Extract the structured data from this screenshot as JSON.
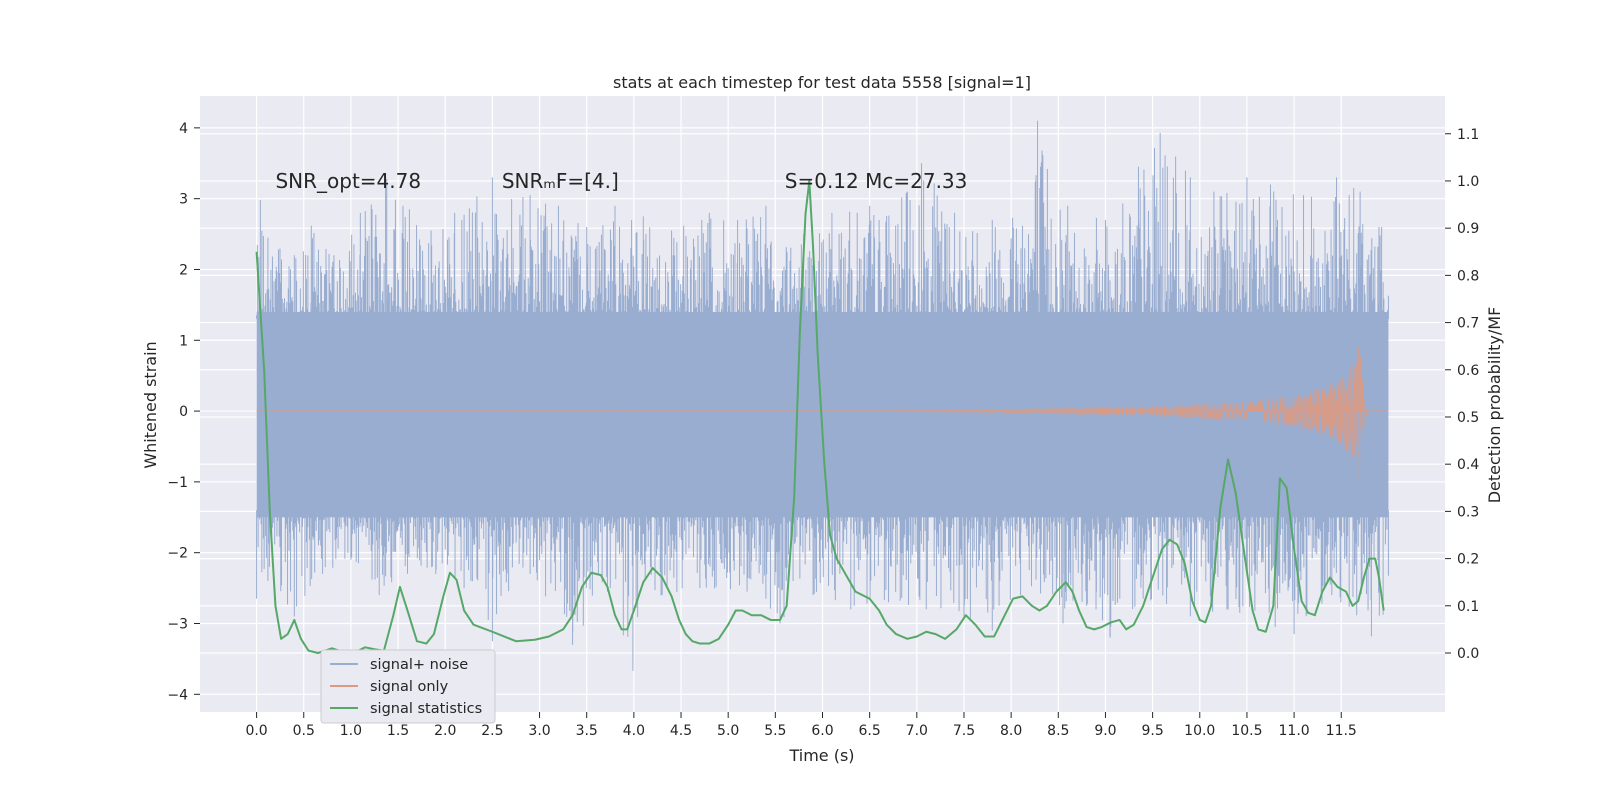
{
  "chart_data": {
    "type": "line",
    "title": "stats at each timestep for test data 5558 [signal=1]",
    "xlabel": "Time (s)",
    "ylabel_left": "Whitened strain",
    "ylabel_right": "Detection probability/MF",
    "xlim": [
      -0.6,
      12.6
    ],
    "ylim_left": [
      -4.25,
      4.45
    ],
    "ylim_right": [
      -0.125,
      1.18
    ],
    "x_ticks": [
      0.0,
      0.5,
      1.0,
      1.5,
      2.0,
      2.5,
      3.0,
      3.5,
      4.0,
      4.5,
      5.0,
      5.5,
      6.0,
      6.5,
      7.0,
      7.5,
      8.0,
      8.5,
      9.0,
      9.5,
      10.0,
      10.5,
      11.0,
      11.5
    ],
    "x_tick_labels": [
      "0.0",
      "0.5",
      "1.0",
      "1.5",
      "2.0",
      "2.5",
      "3.0",
      "3.5",
      "4.0",
      "4.5",
      "5.0",
      "5.5",
      "6.0",
      "6.5",
      "7.0",
      "7.5",
      "8.0",
      "8.5",
      "9.0",
      "9.5",
      "10.0",
      "10.5",
      "11.0",
      "11.5"
    ],
    "y_left_ticks": [
      -4,
      -3,
      -2,
      -1,
      0,
      1,
      2,
      3,
      4
    ],
    "y_left_tick_labels": [
      "−4",
      "−3",
      "−2",
      "−1",
      "0",
      "1",
      "2",
      "3",
      "4"
    ],
    "y_right_ticks": [
      0.0,
      0.1,
      0.2,
      0.3,
      0.4,
      0.5,
      0.6,
      0.7,
      0.8,
      0.9,
      1.0,
      1.1
    ],
    "y_right_tick_labels": [
      "0.0",
      "0.1",
      "0.2",
      "0.3",
      "0.4",
      "0.5",
      "0.6",
      "0.7",
      "0.8",
      "0.9",
      "1.0",
      "1.1"
    ],
    "grid": true,
    "legend_position": "lower-left",
    "annotations": [
      {
        "text": "SNR_opt=4.78",
        "x": 0.2,
        "y": 3.25
      },
      {
        "text": "SNRₘF=[4.]",
        "x": 2.6,
        "y": 3.25
      },
      {
        "text": "S=0.12   Mᴄ=27.33",
        "x": 5.6,
        "y": 3.25
      }
    ],
    "series": [
      {
        "name": "signal+ noise",
        "axis": "left",
        "color": "#99add0",
        "x_range": [
          0.0,
          12.0
        ],
        "band": [
          -1.5,
          1.4
        ],
        "peak_samples": [
          [
            0.04,
            2.98
          ],
          [
            0.12,
            2.45
          ],
          [
            0.4,
            2.2
          ],
          [
            0.58,
            2.62
          ],
          [
            0.82,
            2.2
          ],
          [
            1.1,
            2.8
          ],
          [
            1.38,
            3.28
          ],
          [
            1.62,
            2.85
          ],
          [
            1.85,
            2.55
          ],
          [
            2.1,
            2.8
          ],
          [
            2.5,
            3.3
          ],
          [
            2.9,
            3.05
          ],
          [
            3.2,
            2.9
          ],
          [
            3.5,
            2.6
          ],
          [
            3.8,
            2.9
          ],
          [
            4.1,
            2.75
          ],
          [
            4.4,
            2.55
          ],
          [
            4.8,
            2.8
          ],
          [
            5.1,
            2.7
          ],
          [
            5.4,
            2.9
          ],
          [
            5.8,
            2.5
          ],
          [
            6.1,
            2.8
          ],
          [
            6.5,
            2.9
          ],
          [
            6.9,
            3.1
          ],
          [
            7.05,
            3.5
          ],
          [
            7.4,
            2.8
          ],
          [
            7.8,
            2.7
          ],
          [
            8.28,
            4.1
          ],
          [
            8.6,
            2.9
          ],
          [
            9.0,
            2.7
          ],
          [
            9.35,
            3.45
          ],
          [
            9.58,
            3.93
          ],
          [
            9.9,
            3.3
          ],
          [
            10.15,
            3.1
          ],
          [
            10.5,
            3.3
          ],
          [
            10.75,
            3.2
          ],
          [
            11.1,
            3.05
          ],
          [
            11.45,
            3.3
          ],
          [
            11.7,
            3.1
          ],
          [
            11.9,
            2.6
          ]
        ],
        "trough_samples": [
          [
            0.0,
            -2.65
          ],
          [
            0.12,
            -2.4
          ],
          [
            0.4,
            -2.9
          ],
          [
            0.7,
            -2.3
          ],
          [
            1.0,
            -2.1
          ],
          [
            1.3,
            -2.6
          ],
          [
            1.6,
            -2.3
          ],
          [
            1.9,
            -2.3
          ],
          [
            2.2,
            -2.5
          ],
          [
            2.5,
            -3.25
          ],
          [
            2.9,
            -2.3
          ],
          [
            3.35,
            -3.3
          ],
          [
            3.75,
            -2.5
          ],
          [
            3.99,
            -3.67
          ],
          [
            4.3,
            -2.6
          ],
          [
            4.7,
            -2.5
          ],
          [
            5.2,
            -2.55
          ],
          [
            5.55,
            -3.0
          ],
          [
            5.9,
            -2.6
          ],
          [
            6.3,
            -2.8
          ],
          [
            6.7,
            -2.7
          ],
          [
            7.1,
            -2.8
          ],
          [
            7.5,
            -2.9
          ],
          [
            7.8,
            -3.1
          ],
          [
            8.1,
            -2.6
          ],
          [
            8.55,
            -3.0
          ],
          [
            8.9,
            -2.8
          ],
          [
            9.05,
            -3.2
          ],
          [
            9.4,
            -2.65
          ],
          [
            9.9,
            -2.9
          ],
          [
            10.3,
            -2.8
          ],
          [
            10.8,
            -3.05
          ],
          [
            11.0,
            -3.15
          ],
          [
            11.4,
            -2.6
          ],
          [
            11.82,
            -3.18
          ]
        ]
      },
      {
        "name": "signal only",
        "axis": "left",
        "color": "#dd9a82",
        "x_range": [
          0.0,
          12.0
        ],
        "envelope": [
          [
            0.0,
            0.0
          ],
          [
            6.5,
            0.01
          ],
          [
            8.0,
            0.03
          ],
          [
            9.5,
            0.07
          ],
          [
            10.5,
            0.14
          ],
          [
            11.0,
            0.22
          ],
          [
            11.3,
            0.33
          ],
          [
            11.5,
            0.47
          ],
          [
            11.62,
            0.66
          ],
          [
            11.7,
            1.0
          ],
          [
            11.74,
            0.25
          ],
          [
            11.78,
            0.0
          ],
          [
            12.0,
            0.0
          ]
        ]
      },
      {
        "name": "signal statistics",
        "axis": "right",
        "color": "#55a868",
        "points": [
          [
            0.0,
            0.85
          ],
          [
            0.08,
            0.6
          ],
          [
            0.14,
            0.3
          ],
          [
            0.2,
            0.1
          ],
          [
            0.26,
            0.03
          ],
          [
            0.33,
            0.04
          ],
          [
            0.4,
            0.07
          ],
          [
            0.47,
            0.03
          ],
          [
            0.55,
            0.005
          ],
          [
            0.65,
            0.0
          ],
          [
            0.8,
            0.01
          ],
          [
            0.95,
            0.0
          ],
          [
            1.05,
            0.002
          ],
          [
            1.15,
            0.012
          ],
          [
            1.25,
            0.008
          ],
          [
            1.35,
            0.005
          ],
          [
            1.45,
            0.08
          ],
          [
            1.52,
            0.14
          ],
          [
            1.6,
            0.09
          ],
          [
            1.7,
            0.025
          ],
          [
            1.8,
            0.02
          ],
          [
            1.88,
            0.04
          ],
          [
            1.98,
            0.12
          ],
          [
            2.05,
            0.17
          ],
          [
            2.12,
            0.155
          ],
          [
            2.2,
            0.09
          ],
          [
            2.3,
            0.06
          ],
          [
            2.5,
            0.045
          ],
          [
            2.75,
            0.025
          ],
          [
            2.95,
            0.028
          ],
          [
            3.1,
            0.035
          ],
          [
            3.25,
            0.05
          ],
          [
            3.35,
            0.08
          ],
          [
            3.45,
            0.14
          ],
          [
            3.55,
            0.17
          ],
          [
            3.65,
            0.165
          ],
          [
            3.72,
            0.14
          ],
          [
            3.8,
            0.08
          ],
          [
            3.87,
            0.05
          ],
          [
            3.93,
            0.05
          ],
          [
            4.0,
            0.09
          ],
          [
            4.1,
            0.15
          ],
          [
            4.2,
            0.18
          ],
          [
            4.3,
            0.16
          ],
          [
            4.4,
            0.12
          ],
          [
            4.48,
            0.07
          ],
          [
            4.55,
            0.04
          ],
          [
            4.62,
            0.025
          ],
          [
            4.7,
            0.02
          ],
          [
            4.8,
            0.02
          ],
          [
            4.9,
            0.03
          ],
          [
            5.0,
            0.06
          ],
          [
            5.08,
            0.09
          ],
          [
            5.15,
            0.09
          ],
          [
            5.25,
            0.08
          ],
          [
            5.35,
            0.08
          ],
          [
            5.45,
            0.07
          ],
          [
            5.55,
            0.07
          ],
          [
            5.62,
            0.1
          ],
          [
            5.7,
            0.33
          ],
          [
            5.76,
            0.68
          ],
          [
            5.82,
            0.93
          ],
          [
            5.86,
            1.0
          ],
          [
            5.9,
            0.86
          ],
          [
            5.95,
            0.63
          ],
          [
            6.02,
            0.4
          ],
          [
            6.08,
            0.25
          ],
          [
            6.15,
            0.2
          ],
          [
            6.25,
            0.165
          ],
          [
            6.35,
            0.13
          ],
          [
            6.5,
            0.115
          ],
          [
            6.6,
            0.09
          ],
          [
            6.68,
            0.06
          ],
          [
            6.78,
            0.04
          ],
          [
            6.9,
            0.03
          ],
          [
            7.0,
            0.035
          ],
          [
            7.1,
            0.045
          ],
          [
            7.2,
            0.04
          ],
          [
            7.3,
            0.03
          ],
          [
            7.42,
            0.05
          ],
          [
            7.52,
            0.08
          ],
          [
            7.62,
            0.06
          ],
          [
            7.72,
            0.035
          ],
          [
            7.82,
            0.035
          ],
          [
            7.92,
            0.075
          ],
          [
            8.02,
            0.115
          ],
          [
            8.12,
            0.12
          ],
          [
            8.22,
            0.1
          ],
          [
            8.3,
            0.09
          ],
          [
            8.38,
            0.1
          ],
          [
            8.48,
            0.13
          ],
          [
            8.58,
            0.15
          ],
          [
            8.65,
            0.13
          ],
          [
            8.72,
            0.09
          ],
          [
            8.8,
            0.055
          ],
          [
            8.88,
            0.05
          ],
          [
            8.96,
            0.055
          ],
          [
            9.06,
            0.065
          ],
          [
            9.15,
            0.07
          ],
          [
            9.22,
            0.05
          ],
          [
            9.3,
            0.06
          ],
          [
            9.4,
            0.1
          ],
          [
            9.5,
            0.16
          ],
          [
            9.6,
            0.22
          ],
          [
            9.68,
            0.24
          ],
          [
            9.76,
            0.23
          ],
          [
            9.84,
            0.19
          ],
          [
            9.92,
            0.11
          ],
          [
            10.0,
            0.07
          ],
          [
            10.06,
            0.065
          ],
          [
            10.12,
            0.1
          ],
          [
            10.22,
            0.31
          ],
          [
            10.3,
            0.41
          ],
          [
            10.38,
            0.34
          ],
          [
            10.48,
            0.2
          ],
          [
            10.56,
            0.09
          ],
          [
            10.62,
            0.05
          ],
          [
            10.7,
            0.045
          ],
          [
            10.78,
            0.1
          ],
          [
            10.85,
            0.37
          ],
          [
            10.92,
            0.35
          ],
          [
            11.0,
            0.22
          ],
          [
            11.08,
            0.11
          ],
          [
            11.15,
            0.085
          ],
          [
            11.22,
            0.08
          ],
          [
            11.3,
            0.13
          ],
          [
            11.38,
            0.16
          ],
          [
            11.46,
            0.14
          ],
          [
            11.55,
            0.13
          ],
          [
            11.62,
            0.1
          ],
          [
            11.68,
            0.11
          ],
          [
            11.74,
            0.16
          ],
          [
            11.8,
            0.2
          ],
          [
            11.86,
            0.2
          ],
          [
            11.9,
            0.16
          ],
          [
            11.95,
            0.09
          ]
        ]
      }
    ]
  }
}
